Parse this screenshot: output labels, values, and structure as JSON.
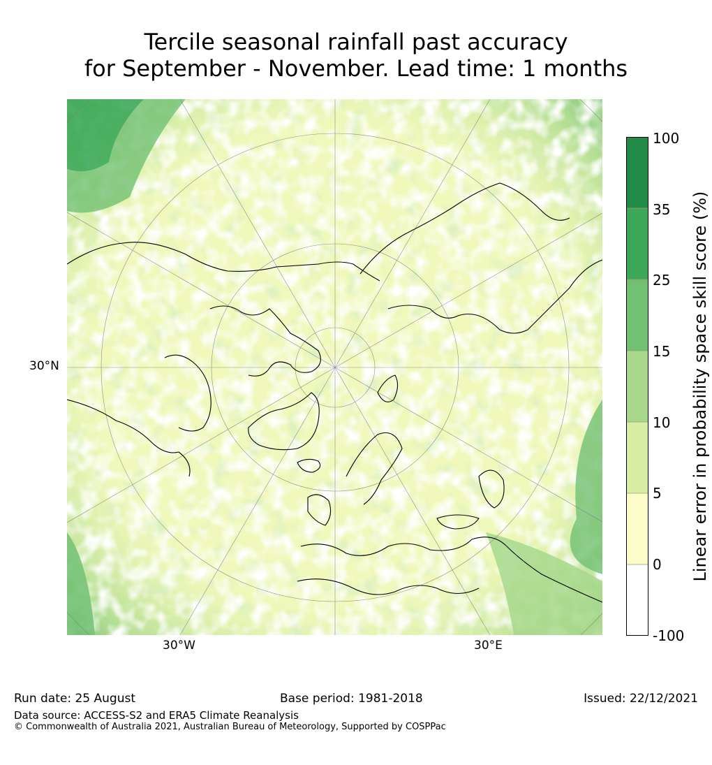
{
  "title": {
    "line1": "Tercile seasonal rainfall past accuracy",
    "line2": "for September - November. Lead time: 1 months"
  },
  "map": {
    "projection": "north-polar-stereographic",
    "axis_labels": {
      "lat_left": "30°N",
      "lon_bottom_left": "30°W",
      "lon_bottom_right": "30°E"
    },
    "features": [
      "coastlines",
      "graticule",
      "skill-score-shading"
    ]
  },
  "colorbar": {
    "label": "Linear error in probability space skill score (%)",
    "ticks": [
      "100",
      "35",
      "25",
      "15",
      "10",
      "5",
      "0",
      "-100"
    ],
    "bins": [
      {
        "range": "35 to 100",
        "color": "#228b47"
      },
      {
        "range": "25 to 35",
        "color": "#3ea85a"
      },
      {
        "range": "15 to 25",
        "color": "#72c173"
      },
      {
        "range": "10 to 15",
        "color": "#a7d88c"
      },
      {
        "range": "5 to 10",
        "color": "#d8eea3"
      },
      {
        "range": "0 to 5",
        "color": "#fdfdc9"
      },
      {
        "range": "-100 to 0",
        "color": "#ffffff"
      }
    ]
  },
  "footer": {
    "run_date": "Run date: 25 August",
    "base_period": "Base period: 1981-2018",
    "issued": "Issued: 22/12/2021",
    "data_source": "Data source: ACCESS-S2 and ERA5 Climate Reanalysis",
    "copyright": "© Commonwealth of Australia 2021, Australian Bureau of Meteorology, Supported by COSPPac"
  }
}
